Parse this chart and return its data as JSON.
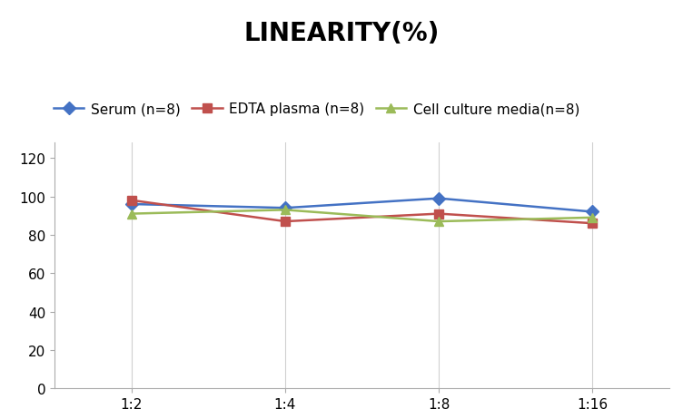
{
  "title": "LINEARITY(%)",
  "title_fontsize": 20,
  "title_fontweight": "bold",
  "x_labels": [
    "1:2",
    "1:4",
    "1:8",
    "1:16"
  ],
  "x_positions": [
    0,
    1,
    2,
    3
  ],
  "series": [
    {
      "label": "Serum (n=8)",
      "values": [
        96,
        94,
        99,
        92
      ],
      "color": "#4472C4",
      "marker": "D",
      "markersize": 7,
      "linewidth": 1.8
    },
    {
      "label": "EDTA plasma (n=8)",
      "values": [
        98,
        87,
        91,
        86
      ],
      "color": "#C0504D",
      "marker": "s",
      "markersize": 7,
      "linewidth": 1.8
    },
    {
      "label": "Cell culture media(n=8)",
      "values": [
        91,
        93,
        87,
        89
      ],
      "color": "#9BBB59",
      "marker": "^",
      "markersize": 7,
      "linewidth": 1.8
    }
  ],
  "ylim": [
    0,
    128
  ],
  "yticks": [
    0,
    20,
    40,
    60,
    80,
    100,
    120
  ],
  "background_color": "#ffffff",
  "grid_color": "#d0d0d0",
  "legend_fontsize": 11,
  "tick_fontsize": 11
}
